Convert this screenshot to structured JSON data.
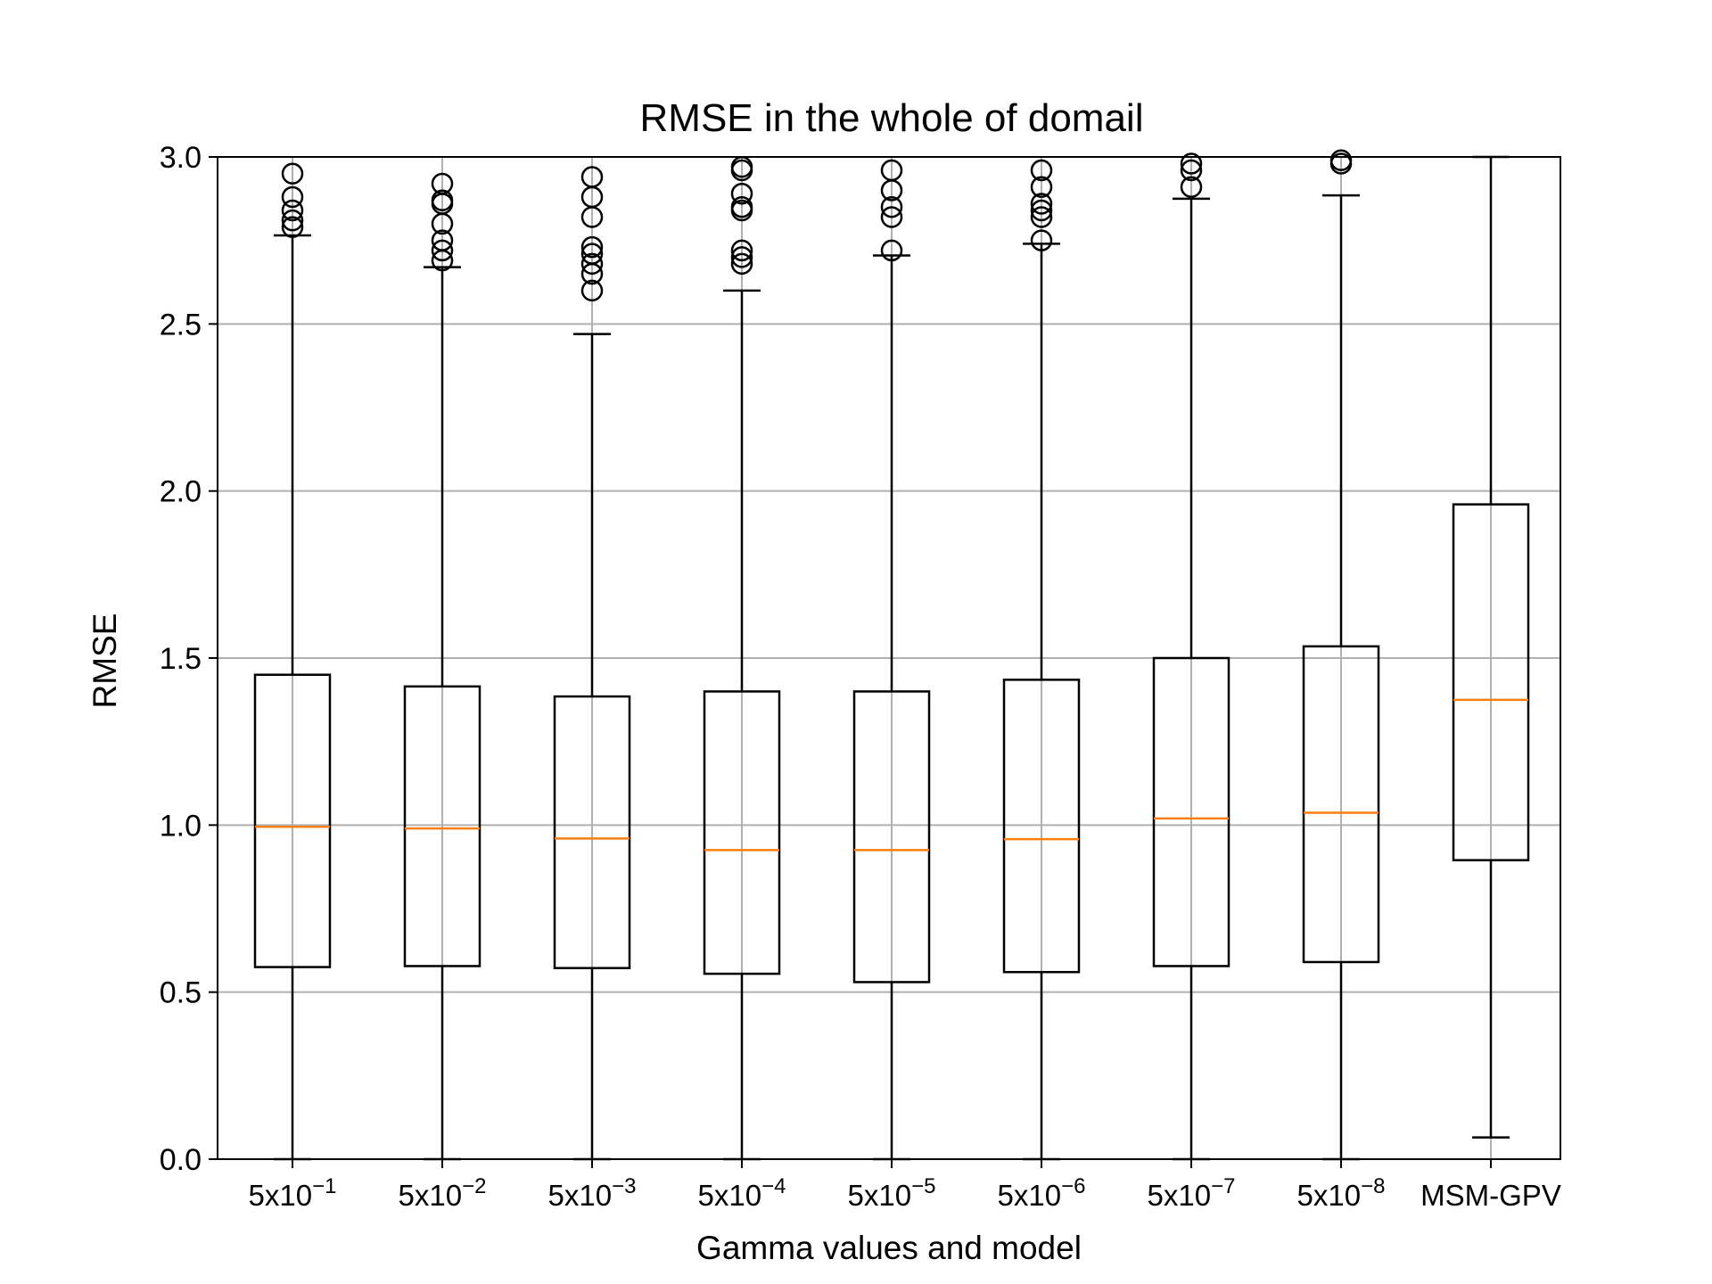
{
  "chart_data": {
    "type": "box",
    "title": "RMSE in the whole of domail",
    "xlabel": "Gamma values and model",
    "ylabel": "RMSE",
    "ylim": [
      0.0,
      3.0
    ],
    "yticks": [
      "0.0",
      "0.5",
      "1.0",
      "1.5",
      "2.0",
      "2.5",
      "3.0"
    ],
    "grid": true,
    "categories": [
      {
        "base": "5x10",
        "exp": "−1"
      },
      {
        "base": "5x10",
        "exp": "−2"
      },
      {
        "base": "5x10",
        "exp": "−3"
      },
      {
        "base": "5x10",
        "exp": "−4"
      },
      {
        "base": "5x10",
        "exp": "−5"
      },
      {
        "base": "5x10",
        "exp": "−6"
      },
      {
        "base": "5x10",
        "exp": "−7"
      },
      {
        "base": "5x10",
        "exp": "−8"
      },
      {
        "base": "MSM-GPV",
        "exp": ""
      }
    ],
    "boxes": [
      {
        "whisker_low": 0.0,
        "q1": 0.575,
        "median": 0.995,
        "q3": 1.45,
        "whisker_high": 2.765,
        "outliers": [
          2.79,
          2.81,
          2.84,
          2.88,
          2.95
        ]
      },
      {
        "whisker_low": 0.0,
        "q1": 0.578,
        "median": 0.99,
        "q3": 1.415,
        "whisker_high": 2.67,
        "outliers": [
          2.69,
          2.72,
          2.75,
          2.8,
          2.86,
          2.87,
          2.92
        ]
      },
      {
        "whisker_low": 0.0,
        "q1": 0.572,
        "median": 0.96,
        "q3": 1.385,
        "whisker_high": 2.47,
        "outliers": [
          2.6,
          2.65,
          2.68,
          2.71,
          2.73,
          2.82,
          2.88,
          2.94
        ]
      },
      {
        "whisker_low": 0.0,
        "q1": 0.555,
        "median": 0.925,
        "q3": 1.4,
        "whisker_high": 2.6,
        "outliers": [
          2.68,
          2.7,
          2.72,
          2.84,
          2.85,
          2.89,
          2.96,
          2.97
        ]
      },
      {
        "whisker_low": 0.0,
        "q1": 0.53,
        "median": 0.925,
        "q3": 1.4,
        "whisker_high": 2.705,
        "outliers": [
          2.72,
          2.82,
          2.85,
          2.9,
          2.96
        ]
      },
      {
        "whisker_low": 0.0,
        "q1": 0.56,
        "median": 0.958,
        "q3": 1.435,
        "whisker_high": 2.74,
        "outliers": [
          2.75,
          2.82,
          2.84,
          2.86,
          2.91,
          2.96
        ]
      },
      {
        "whisker_low": 0.0,
        "q1": 0.578,
        "median": 1.02,
        "q3": 1.5,
        "whisker_high": 2.875,
        "outliers": [
          2.91,
          2.96,
          2.98
        ]
      },
      {
        "whisker_low": 0.0,
        "q1": 0.59,
        "median": 1.037,
        "q3": 1.535,
        "whisker_high": 2.885,
        "outliers": [
          2.98,
          2.99
        ]
      },
      {
        "whisker_low": 0.065,
        "q1": 0.895,
        "median": 1.375,
        "q3": 1.96,
        "whisker_high": 3.0,
        "outliers": []
      }
    ],
    "colors": {
      "box": "#000000",
      "median": "#ff7f0e",
      "grid": "#b0b0b0"
    }
  }
}
